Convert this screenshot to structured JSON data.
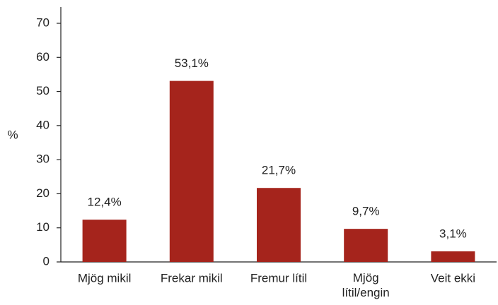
{
  "chart_data": {
    "type": "bar",
    "ylabel": "%",
    "categories": [
      "Mjög mikil",
      "Frekar mikil",
      "Fremur lítil",
      [
        "Mjög",
        "lítil/engin"
      ],
      "Veit ekki"
    ],
    "values": [
      12.4,
      53.1,
      21.7,
      9.7,
      3.1
    ],
    "value_labels": [
      "12,4%",
      "53,1%",
      "21,7%",
      "9,7%",
      "3,1%"
    ],
    "color": "#a5241c",
    "ylim": [
      0,
      70
    ],
    "yticks": [
      0,
      10,
      20,
      30,
      40,
      50,
      60,
      70
    ],
    "grid": false
  }
}
